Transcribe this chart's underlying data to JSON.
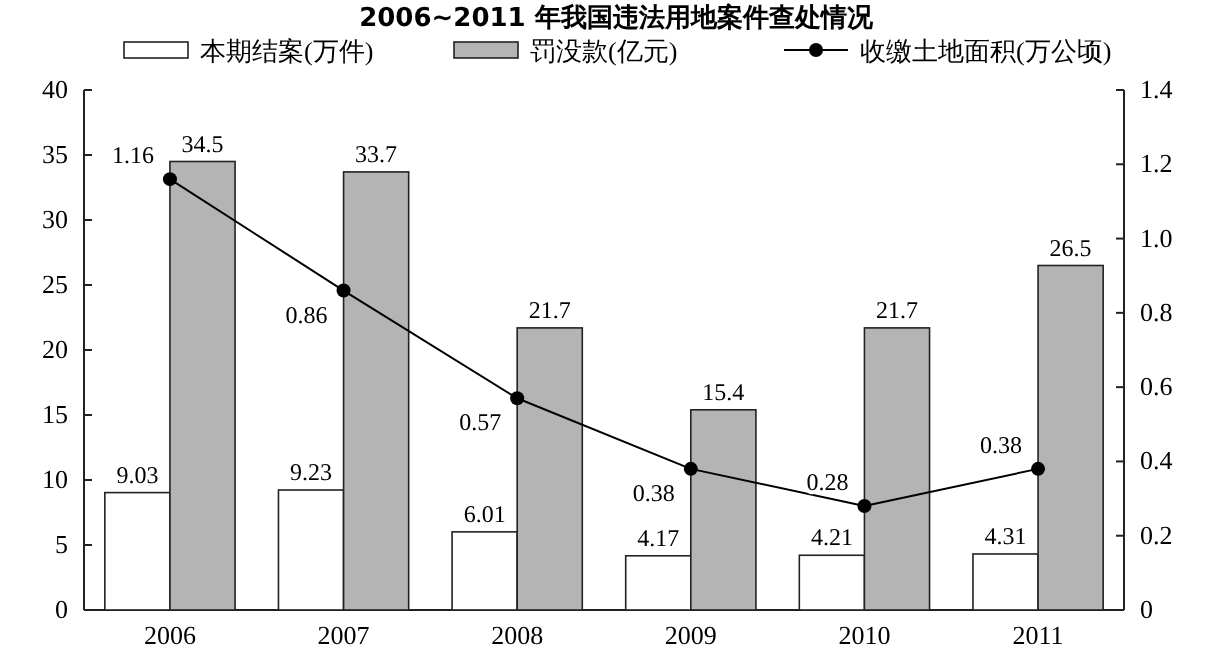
{
  "chart_data": {
    "type": "bar",
    "title": "2006~2011 年我国违法用地案件查处情况",
    "categories": [
      "2006",
      "2007",
      "2008",
      "2009",
      "2010",
      "2011"
    ],
    "series": [
      {
        "name": "本期结案(万件)",
        "color": "#ffffff",
        "values": [
          9.03,
          9.23,
          6.01,
          4.17,
          4.21,
          4.31
        ]
      },
      {
        "name": "罚没款(亿元)",
        "color": "#b4b4b4",
        "values": [
          34.5,
          33.7,
          21.7,
          15.4,
          21.7,
          26.5
        ]
      },
      {
        "name": "收缴土地面积(万公顷)",
        "type": "line",
        "axis": "y2",
        "color": "#000000",
        "marker": "circle",
        "values": [
          1.16,
          0.86,
          0.57,
          0.38,
          0.28,
          0.38
        ]
      }
    ],
    "ylim": [
      0,
      40
    ],
    "yticks": [
      0,
      5,
      10,
      15,
      20,
      25,
      30,
      35,
      40
    ],
    "y2lim": [
      0,
      1.4
    ],
    "y2ticks": [
      {
        "value": 0,
        "label": "0"
      },
      {
        "value": 0.2,
        "label": "0.2"
      },
      {
        "value": 0.4,
        "label": "0.4"
      },
      {
        "value": 0.6,
        "label": "0.6"
      },
      {
        "value": 0.8,
        "label": "0.8"
      },
      {
        "value": 1,
        "label": "1.0"
      },
      {
        "value": 1.2,
        "label": "1.2"
      },
      {
        "value": 1.4,
        "label": "1.4"
      }
    ],
    "data_labels": true,
    "legend": "top",
    "grid": false
  }
}
